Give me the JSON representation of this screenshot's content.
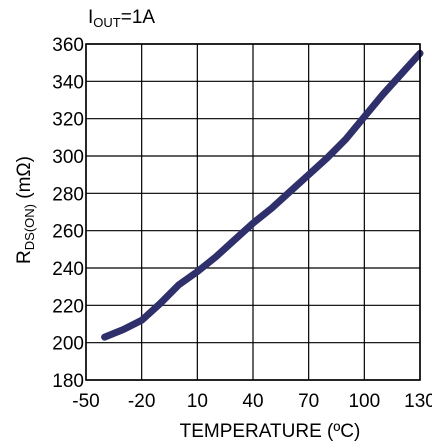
{
  "chart_data": {
    "type": "line",
    "annotation": {
      "symbol": "I",
      "subscript": "OUT",
      "rest": "=1A"
    },
    "xlabel": "TEMPERATURE (ºC)",
    "ylabel": {
      "symbol": "R",
      "subscript": "DS(ON)",
      "rest": " (mΩ)"
    },
    "xlim": [
      -50,
      130
    ],
    "ylim": [
      180,
      360
    ],
    "xticks": [
      -50,
      -20,
      10,
      40,
      70,
      100,
      130
    ],
    "yticks": [
      180,
      200,
      220,
      240,
      260,
      280,
      300,
      320,
      340,
      360
    ],
    "grid": true,
    "line_color": "#2e2f6b",
    "series": [
      {
        "x": [
          -40,
          -30,
          -20,
          -10,
          0,
          10,
          20,
          30,
          40,
          50,
          60,
          70,
          80,
          90,
          100,
          110,
          120,
          130
        ],
        "y": [
          203,
          207,
          212,
          221,
          231,
          238,
          246,
          255,
          264,
          272,
          281,
          290,
          299,
          309,
          321,
          333,
          344,
          355
        ]
      }
    ]
  }
}
